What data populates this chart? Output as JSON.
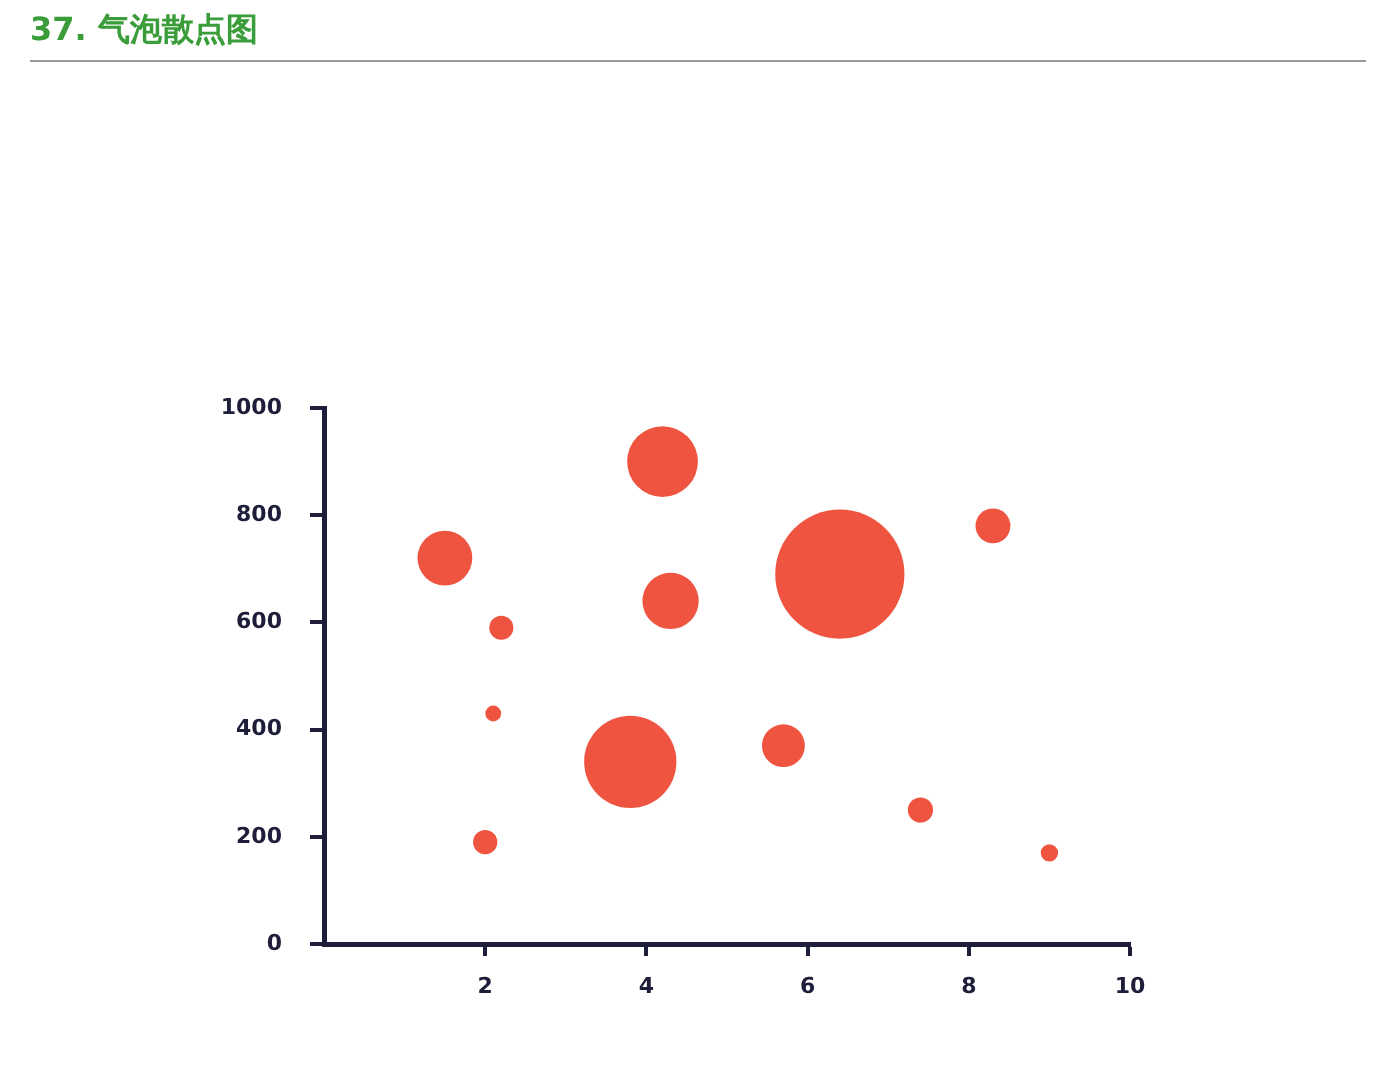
{
  "chart_data": {
    "type": "bubble",
    "title": "37. 气泡散点图",
    "x": [
      1.5,
      2.2,
      2.1,
      2.0,
      3.8,
      4.2,
      4.3,
      6.4,
      8.3,
      5.7,
      7.4,
      9.0
    ],
    "values": [
      720,
      590,
      430,
      190,
      340,
      900,
      640,
      690,
      780,
      370,
      250,
      170
    ],
    "sizes": [
      0.18,
      0.035,
      0.015,
      0.035,
      0.51,
      0.3,
      0.19,
      1,
      0.073,
      0.11,
      0.038,
      0.018
    ],
    "color": "#ef5440",
    "xlim": [
      0,
      10
    ],
    "xticks": [
      2,
      4,
      6,
      8,
      10
    ],
    "ylim": [
      0,
      1000
    ],
    "yticks": [
      0,
      200,
      400,
      600,
      800,
      1000
    ],
    "grid": false
  }
}
